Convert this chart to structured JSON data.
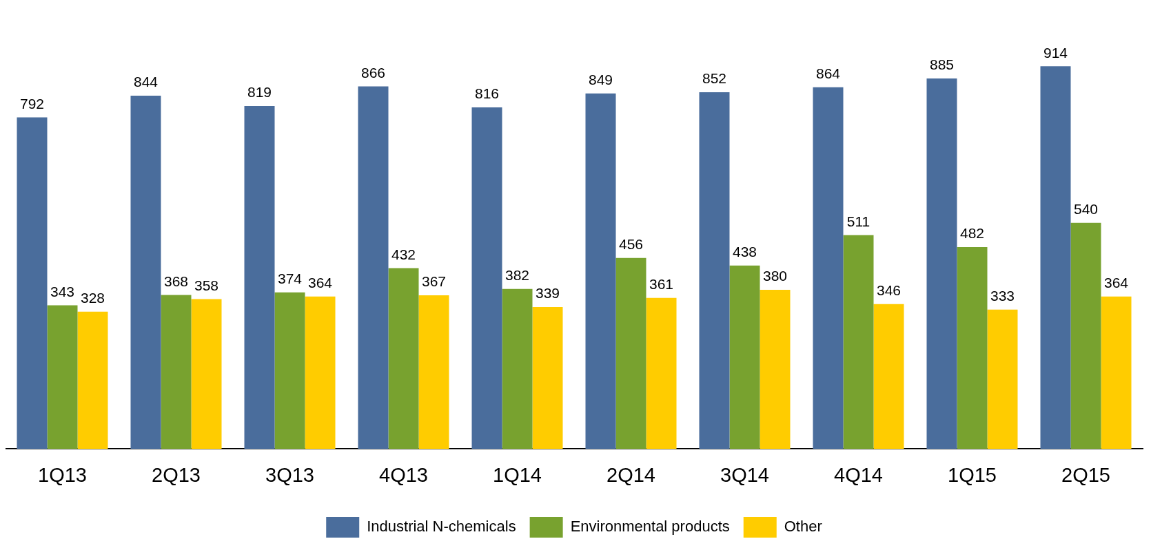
{
  "chart_data": {
    "type": "bar",
    "categories": [
      "1Q13",
      "2Q13",
      "3Q13",
      "4Q13",
      "1Q14",
      "2Q14",
      "3Q14",
      "4Q14",
      "1Q15",
      "2Q15"
    ],
    "series": [
      {
        "name": "Industrial N-chemicals",
        "color": "#4a6d9c",
        "values": [
          792,
          844,
          819,
          866,
          816,
          849,
          852,
          864,
          885,
          914
        ]
      },
      {
        "name": "Environmental products",
        "color": "#78a22f",
        "values": [
          343,
          368,
          374,
          432,
          382,
          456,
          438,
          511,
          482,
          540
        ]
      },
      {
        "name": "Other",
        "color": "#ffcc00",
        "values": [
          328,
          358,
          364,
          367,
          339,
          361,
          380,
          346,
          333,
          364
        ]
      }
    ],
    "tick_labels": "x",
    "data_labels": true,
    "grid": false,
    "legend": "bottom"
  }
}
